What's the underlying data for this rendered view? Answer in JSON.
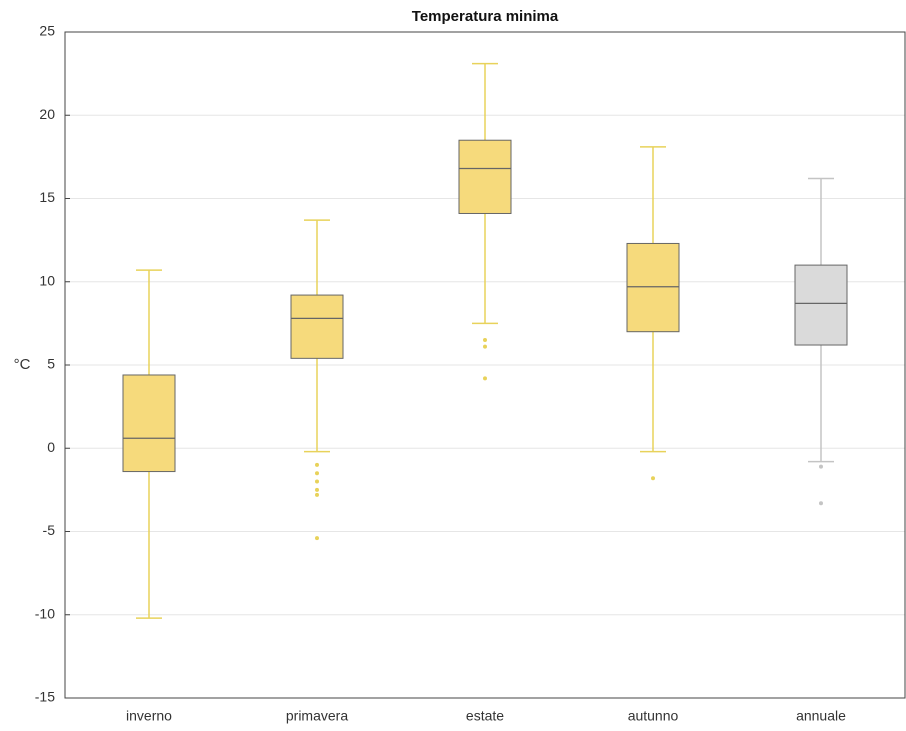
{
  "chart_data": {
    "type": "box",
    "title": "Temperatura minima",
    "ylabel": "°C",
    "categories": [
      "inverno",
      "primavera",
      "estate",
      "autunno",
      "annuale"
    ],
    "boxes": [
      {
        "whisker_low": -10.2,
        "q1": -1.4,
        "median": 0.6,
        "q3": 4.4,
        "whisker_high": 10.7,
        "outliers": [],
        "color": "#f6da7c",
        "line_color": "#e8d25a"
      },
      {
        "whisker_low": -0.2,
        "q1": 5.4,
        "median": 7.8,
        "q3": 9.2,
        "whisker_high": 13.7,
        "outliers": [
          -1.0,
          -1.5,
          -2.0,
          -2.5,
          -2.8,
          -5.4
        ],
        "color": "#f6da7c",
        "line_color": "#e8d25a"
      },
      {
        "whisker_low": 7.5,
        "q1": 14.1,
        "median": 16.8,
        "q3": 18.5,
        "whisker_high": 23.1,
        "outliers": [
          6.5,
          6.1,
          4.2
        ],
        "color": "#f6da7c",
        "line_color": "#e8d25a"
      },
      {
        "whisker_low": -0.2,
        "q1": 7.0,
        "median": 9.7,
        "q3": 12.3,
        "whisker_high": 18.1,
        "outliers": [
          -1.8
        ],
        "color": "#f6da7c",
        "line_color": "#e8d25a"
      },
      {
        "whisker_low": -0.8,
        "q1": 6.2,
        "median": 8.7,
        "q3": 11.0,
        "whisker_high": 16.2,
        "outliers": [
          -1.1,
          -3.3
        ],
        "color": "#dadada",
        "line_color": "#c4c4c4"
      }
    ],
    "ylim": [
      -15,
      25
    ],
    "yticks": [
      -15,
      -10,
      -5,
      0,
      5,
      10,
      15,
      20,
      25
    ],
    "grid": true
  }
}
